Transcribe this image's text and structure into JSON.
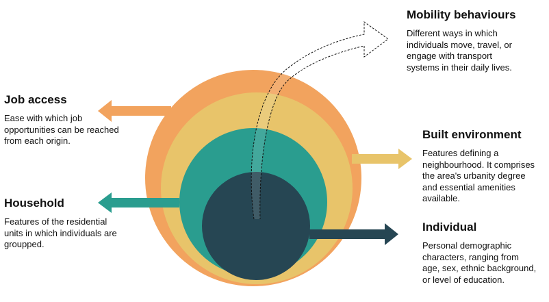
{
  "layers": [
    {
      "id": "job_access",
      "color": "#f2a35e",
      "title": "Job access",
      "description": [
        "Ease with which job",
        "opportunities can be reached",
        "from each origin."
      ]
    },
    {
      "id": "built_environment",
      "color": "#e8c46a",
      "title": "Built environment",
      "description": [
        "Features defining a",
        "neighbourhood. It comprises",
        "the area's urbanity degree",
        "and essential amenities",
        "available."
      ]
    },
    {
      "id": "household",
      "color": "#2a9d8f",
      "title": "Household",
      "description": [
        "Features of the residential",
        "units in which individuals are",
        "groupped."
      ]
    },
    {
      "id": "individual",
      "color": "#264653",
      "title": "Individual",
      "description": [
        "Personal demographic",
        "characters, ranging from",
        "age, sex, ethnic background,",
        "or level of education."
      ]
    },
    {
      "id": "mobility_behaviours",
      "color": "#ffffff",
      "title": "Mobility behaviours",
      "description": [
        "Different ways in which",
        "individuals move, travel, or",
        "engage with transport",
        "systems in their daily lives."
      ]
    }
  ]
}
